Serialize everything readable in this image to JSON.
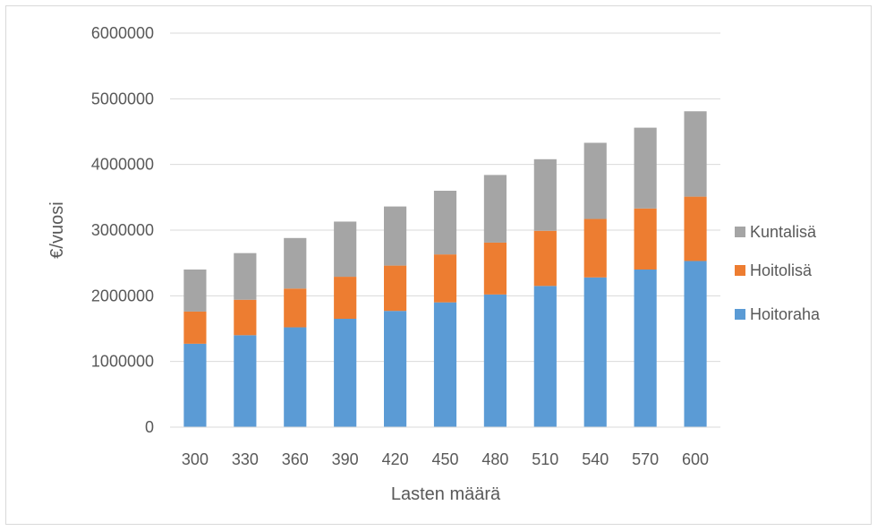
{
  "chart_data": {
    "type": "bar",
    "stacked": true,
    "categories": [
      "300",
      "330",
      "360",
      "390",
      "420",
      "450",
      "480",
      "510",
      "540",
      "570",
      "600"
    ],
    "series": [
      {
        "name": "Hoitoraha",
        "color": "#5b9bd5",
        "values": [
          1270000,
          1400000,
          1520000,
          1650000,
          1770000,
          1900000,
          2020000,
          2150000,
          2280000,
          2400000,
          2530000
        ]
      },
      {
        "name": "Hoitolisä",
        "color": "#ed7d31",
        "values": [
          490000,
          540000,
          590000,
          640000,
          690000,
          730000,
          790000,
          840000,
          890000,
          930000,
          980000
        ]
      },
      {
        "name": "Kuntalisä",
        "color": "#a5a5a5",
        "values": [
          640000,
          710000,
          770000,
          840000,
          900000,
          970000,
          1030000,
          1090000,
          1160000,
          1230000,
          1300000
        ]
      }
    ],
    "xlabel": "Lasten määrä",
    "ylabel": "€/vuosi",
    "ylim": [
      0,
      6000000
    ],
    "yticks": [
      "0",
      "1000000",
      "2000000",
      "3000000",
      "4000000",
      "5000000",
      "6000000"
    ],
    "grid": true,
    "legend_position": "right"
  }
}
